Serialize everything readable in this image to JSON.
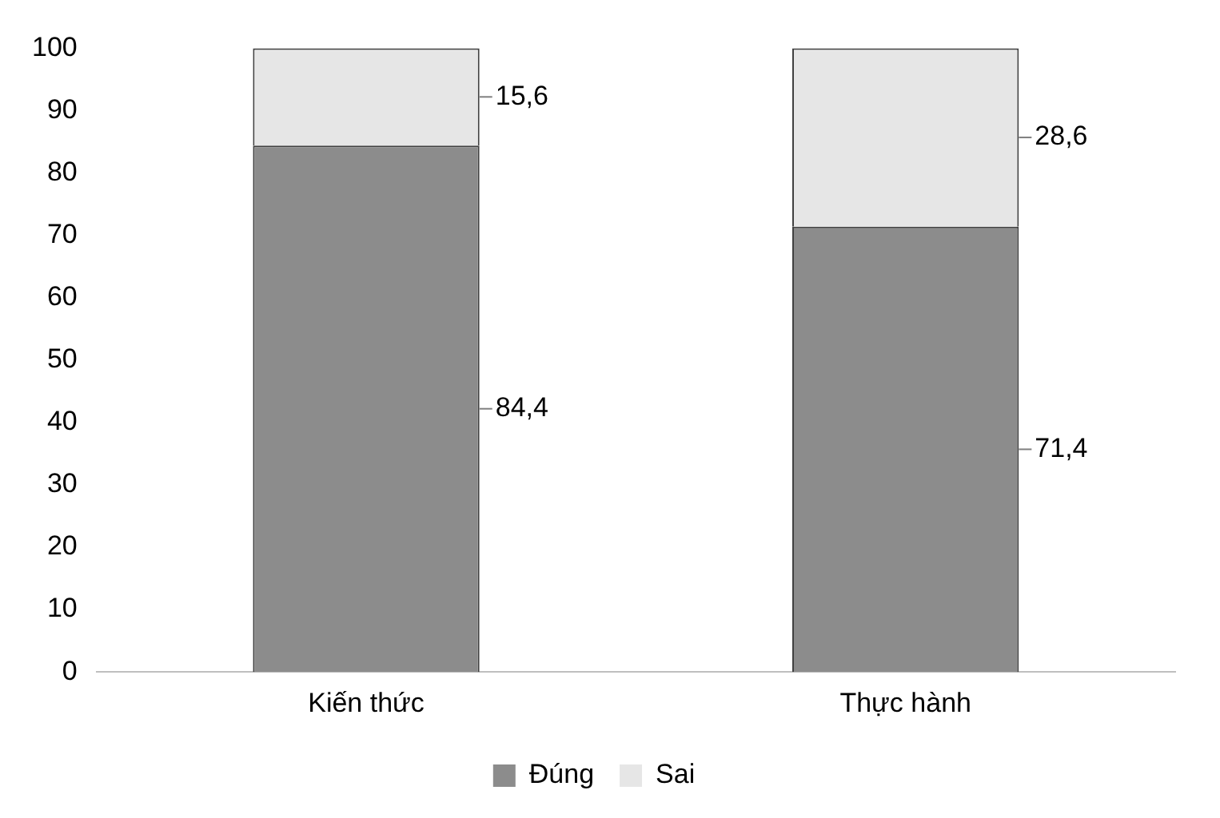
{
  "chart_data": {
    "type": "bar",
    "stacked": true,
    "categories": [
      "Kiến thức",
      "Thực hành"
    ],
    "series": [
      {
        "name": "Đúng",
        "color": "#8c8c8c",
        "values": [
          84.4,
          71.4
        ],
        "value_labels": [
          "84,4",
          "71,4"
        ]
      },
      {
        "name": "Sai",
        "color": "#e6e6e6",
        "values": [
          15.6,
          28.6
        ],
        "value_labels": [
          "15,6",
          "28,6"
        ]
      }
    ],
    "ylim": [
      0,
      100
    ],
    "yticks": [
      0,
      10,
      20,
      30,
      40,
      50,
      60,
      70,
      80,
      90,
      100
    ],
    "legend": "bottom"
  }
}
